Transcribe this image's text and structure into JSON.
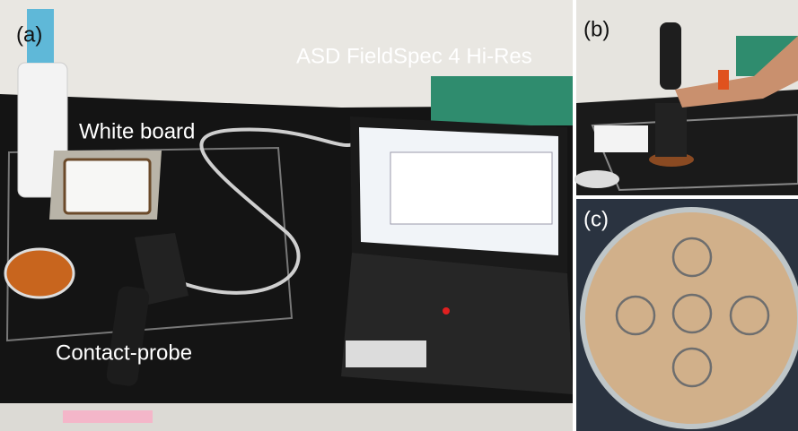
{
  "panels": [
    {
      "label": "(a)",
      "annotations": [
        "ASD FieldSpec 4 Hi-Res",
        "White board",
        "Contact-probe"
      ]
    },
    {
      "label": "(b)"
    },
    {
      "label": "(c)"
    }
  ]
}
